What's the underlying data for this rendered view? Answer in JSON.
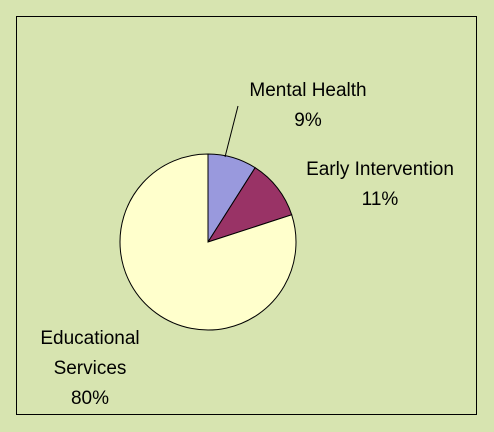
{
  "chart_data": {
    "type": "pie",
    "categories": [
      "Mental Health",
      "Early Intervention",
      "Educational Services"
    ],
    "values": [
      9,
      11,
      80
    ],
    "value_labels": [
      "9%",
      "11%",
      "80%"
    ],
    "colors": [
      "#9999dd",
      "#993366",
      "#ffffcc"
    ]
  }
}
